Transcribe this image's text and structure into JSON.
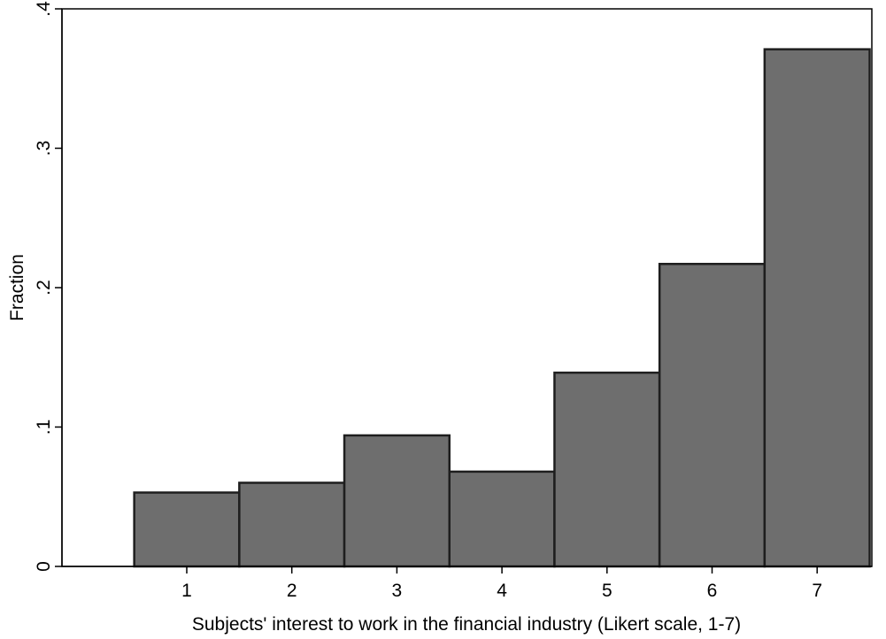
{
  "chart_data": {
    "type": "bar",
    "title": "",
    "xlabel": "Subjects' interest to work in the financial industry (Likert scale, 1-7)",
    "ylabel": "Fraction",
    "categories": [
      "1",
      "2",
      "3",
      "4",
      "5",
      "6",
      "7"
    ],
    "values": [
      0.053,
      0.06,
      0.094,
      0.068,
      0.139,
      0.217,
      0.371
    ],
    "ylim": [
      0,
      0.4
    ],
    "yticks": [
      0,
      0.1,
      0.2,
      0.3,
      0.4
    ],
    "ytick_labels": [
      "0",
      ".1",
      ".2",
      ".3",
      ".4"
    ],
    "grid": false,
    "bar_color": "#6e6e6e",
    "bar_edge_color": "#1e1e1e"
  }
}
